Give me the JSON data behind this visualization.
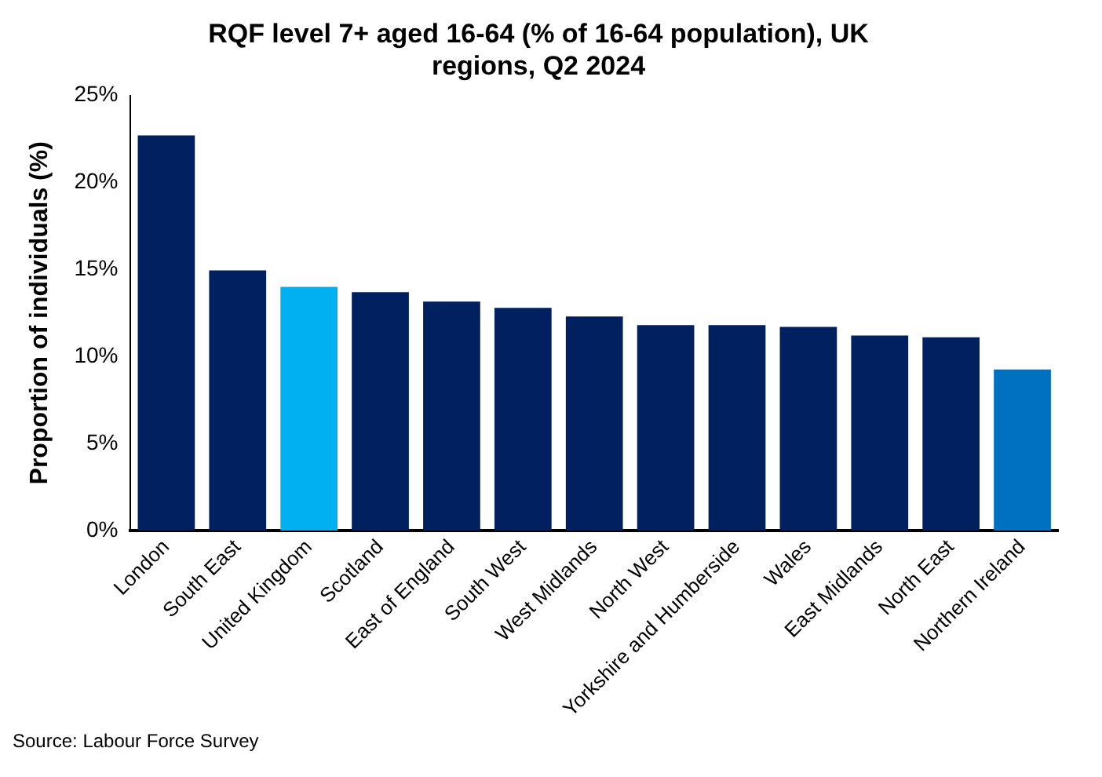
{
  "chart_data": {
    "type": "bar",
    "title": "RQF level 7+ aged 16-64 (% of 16-64 population), UK regions, Q2 2024",
    "ylabel": "Proportion of individuals (%)",
    "categories": [
      "London",
      "South East",
      "United Kingdom",
      "Scotland",
      "East of England",
      "South West",
      "West Midlands",
      "North West",
      "Yorkshire and Humberside",
      "Wales",
      "East Midlands",
      "North East",
      "Northern Ireland"
    ],
    "values": [
      22.7,
      14.95,
      14.0,
      13.7,
      13.15,
      12.8,
      12.3,
      11.8,
      11.8,
      11.7,
      11.2,
      11.1,
      9.25
    ],
    "colors": [
      "#002060",
      "#002060",
      "#00b0f0",
      "#002060",
      "#002060",
      "#002060",
      "#002060",
      "#002060",
      "#002060",
      "#002060",
      "#002060",
      "#002060",
      "#0070c0"
    ],
    "ylim": [
      0,
      25
    ],
    "yticks": [
      {
        "value": 0,
        "label": "0%"
      },
      {
        "value": 5,
        "label": "5%"
      },
      {
        "value": 10,
        "label": "10%"
      },
      {
        "value": 15,
        "label": "15%"
      },
      {
        "value": 20,
        "label": "20%"
      },
      {
        "value": 25,
        "label": "25%"
      }
    ],
    "grid": false,
    "legend": false,
    "annotations": [
      "Source: Labour Force Survey"
    ]
  }
}
